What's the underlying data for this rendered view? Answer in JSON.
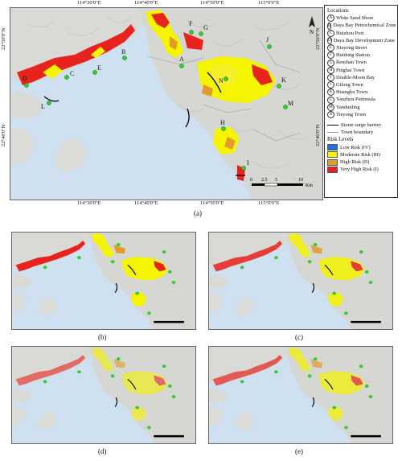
{
  "main_map": {
    "top_ticks": [
      "114°30'0\"E",
      "114°40'0\"E",
      "114°50'0\"E",
      "115°0'0\"E"
    ],
    "bottom_ticks": [
      "114°30'0\"E",
      "114°40'0\"E",
      "114°50'0\"E",
      "115°0'0\"E"
    ],
    "left_ticks": [
      "22°50'0\"N",
      "22°40'0\"N"
    ],
    "right_ticks": [
      "22°50'0\"N",
      "22°40'0\"N"
    ],
    "scale_labels": [
      "0",
      "2.5",
      "5",
      "10"
    ],
    "scale_unit": "Km",
    "north_label": "N",
    "caption": "(a)",
    "points": [
      "A",
      "B",
      "C",
      "D",
      "E",
      "F",
      "G",
      "H",
      "I",
      "J",
      "K",
      "L",
      "M",
      "N"
    ]
  },
  "legend": {
    "locations_title": "Locations",
    "locations": [
      {
        "code": "A",
        "name": "White Sand Shore"
      },
      {
        "code": "B",
        "name": "Daya Bay Petrochemical Zone"
      },
      {
        "code": "C",
        "name": "Huizhou Port"
      },
      {
        "code": "D",
        "name": "Daya Bay Development Zone"
      },
      {
        "code": "E",
        "name": "Xiayong Street"
      },
      {
        "code": "F",
        "name": "Huidong Station"
      },
      {
        "code": "G",
        "name": "Renshan Town"
      },
      {
        "code": "H",
        "name": "Pinghai Town"
      },
      {
        "code": "I",
        "name": "Double-Moon Bay"
      },
      {
        "code": "J",
        "name": "Gilong Town"
      },
      {
        "code": "K",
        "name": "Huangbu Town"
      },
      {
        "code": "L",
        "name": "Yanzhou Peninsula"
      },
      {
        "code": "M",
        "name": "Yandunling"
      },
      {
        "code": "N",
        "name": "Tieyong Town"
      }
    ],
    "lines": [
      {
        "name": "Storm surge barrier",
        "color": "#000000"
      },
      {
        "name": "Town boundary",
        "color": "#9a9a9a"
      }
    ],
    "risk_title": "Risk Levels",
    "risks": [
      {
        "name": "Low Risk (IV)",
        "color": "#1f6fd6"
      },
      {
        "name": "Moderate Risk (III)",
        "color": "#f5f500"
      },
      {
        "name": "High Risk (II)",
        "color": "#e39b2a"
      },
      {
        "name": "Very High Risk (I)",
        "color": "#e8231d"
      }
    ]
  },
  "small_maps": [
    {
      "caption": "(b)"
    },
    {
      "caption": "(c)"
    },
    {
      "caption": "(d)"
    },
    {
      "caption": "(e)"
    }
  ]
}
